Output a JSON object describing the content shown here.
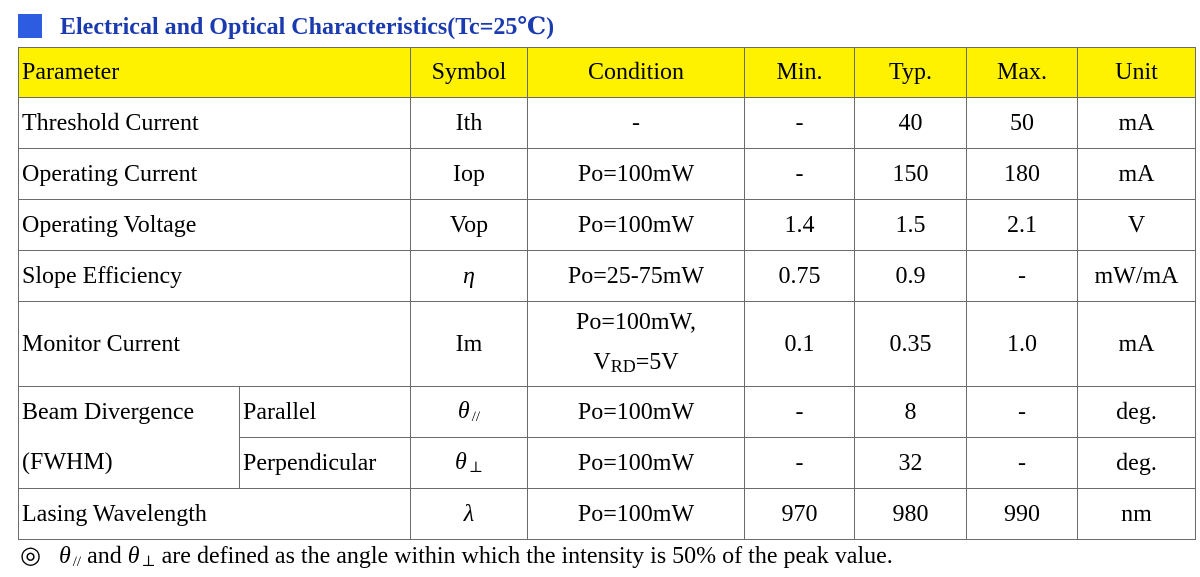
{
  "title": "Electrical and Optical Characteristics(Tc=25℃)",
  "colors": {
    "header_bg": "#fff200",
    "title": "#1a3ab0",
    "square": "#2d5ce0"
  },
  "headers": {
    "parameter": "Parameter",
    "symbol": "Symbol",
    "condition": "Condition",
    "min": "Min.",
    "typ": "Typ.",
    "max": "Max.",
    "unit": "Unit"
  },
  "rows": [
    {
      "parameter": "Threshold Current",
      "symbol": "Ith",
      "condition": "-",
      "min": "-",
      "typ": "40",
      "max": "50",
      "unit": "mA"
    },
    {
      "parameter": "Operating Current",
      "symbol": "Iop",
      "condition": "Po=100mW",
      "min": "-",
      "typ": "150",
      "max": "180",
      "unit": "mA"
    },
    {
      "parameter": "Operating Voltage",
      "symbol": "Vop",
      "condition": "Po=100mW",
      "min": "1.4",
      "typ": "1.5",
      "max": "2.1",
      "unit": "V"
    },
    {
      "parameter": "Slope Efficiency",
      "symbol": "η",
      "condition": "Po=25-75mW",
      "min": "0.75",
      "typ": "0.9",
      "max": "-",
      "unit": "mW/mA"
    },
    {
      "parameter": "Monitor Current",
      "symbol": "Im",
      "condition_line1": "Po=100mW,",
      "condition_line2_main": "V",
      "condition_line2_sub": "RD",
      "condition_line2_rest": "=5V",
      "min": "0.1",
      "typ": "0.35",
      "max": "1.0",
      "unit": "mA"
    },
    {
      "parameter_line1": "Beam Divergence",
      "parameter_line2": "(FWHM)",
      "sub": "Parallel",
      "symbol": "θ",
      "symbol_sub": "//",
      "condition": "Po=100mW",
      "min": "-",
      "typ": "8",
      "max": "-",
      "unit": "deg."
    },
    {
      "sub": "Perpendicular",
      "symbol": "θ",
      "symbol_sub": "⊥",
      "condition": "Po=100mW",
      "min": "-",
      "typ": "32",
      "max": "-",
      "unit": "deg."
    },
    {
      "parameter": "Lasing Wavelength",
      "symbol": "λ",
      "condition": "Po=100mW",
      "min": "970",
      "typ": "980",
      "max": "990",
      "unit": "nm"
    }
  ],
  "note": {
    "mark": "◎",
    "theta": "θ",
    "sub_parallel": "//",
    "and": "and",
    "sub_perp": "⊥",
    "text": "are defined as the angle within which the intensity is 50% of the peak value."
  }
}
